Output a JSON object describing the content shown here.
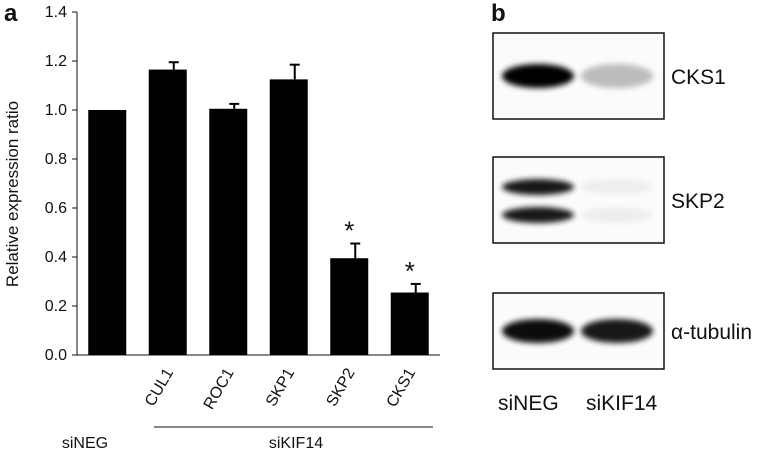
{
  "panel_a": {
    "letter": "a",
    "group_labels": {
      "control": "siNEG",
      "treated": "siKIF14"
    }
  },
  "panel_b": {
    "letter": "b",
    "lanes": [
      "siNEG",
      "siKIF14"
    ],
    "blots": [
      {
        "label": "CKS1",
        "bands": [
          {
            "lane": 0,
            "intensity": 1.0
          },
          {
            "lane": 1,
            "intensity": 0.25
          }
        ],
        "rows": 1
      },
      {
        "label": "SKP2",
        "bands": [
          {
            "lane": 0,
            "intensity": 0.9
          },
          {
            "lane": 1,
            "intensity": 0.05
          }
        ],
        "rows": 2
      },
      {
        "label": "α-tubulin",
        "bands": [
          {
            "lane": 0,
            "intensity": 0.95
          },
          {
            "lane": 1,
            "intensity": 0.9
          }
        ],
        "rows": 1
      }
    ]
  },
  "chart_data": {
    "type": "bar",
    "title": "",
    "xlabel": "",
    "ylabel": "Relative expression ratio",
    "ylim": [
      0,
      1.4
    ],
    "yticks": [
      "0.0",
      "0.2",
      "0.4",
      "0.6",
      "0.8",
      "1.0",
      "1.2",
      "1.4"
    ],
    "categories": [
      "",
      "CUL1",
      "ROC1",
      "SKP1",
      "SKP2",
      "CKS1"
    ],
    "values": [
      1.0,
      1.165,
      1.005,
      1.125,
      0.395,
      0.255
    ],
    "errors": [
      0,
      0.03,
      0.02,
      0.06,
      0.06,
      0.035
    ],
    "significance": [
      "",
      "",
      "",
      "",
      "*",
      "*"
    ],
    "colors": {
      "bar": "#000000",
      "axis": "#111111"
    }
  }
}
